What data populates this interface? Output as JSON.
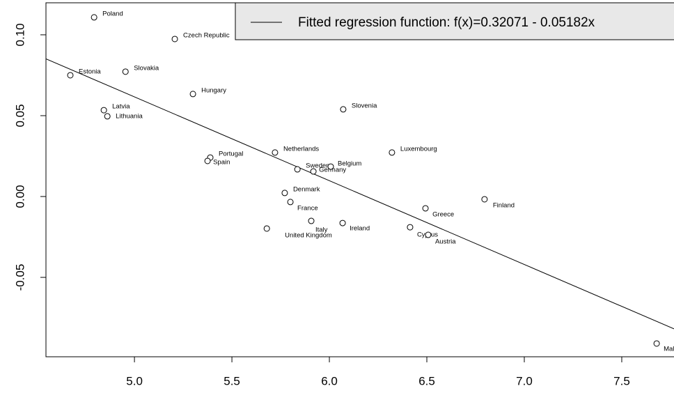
{
  "chart_data": {
    "type": "scatter",
    "x": [
      4.793,
      5.207,
      4.671,
      4.954,
      5.3,
      4.843,
      4.861,
      6.071,
      6.321,
      5.721,
      5.389,
      5.375,
      5.836,
      5.918,
      6.007,
      5.771,
      5.8,
      6.796,
      6.493,
      5.907,
      6.068,
      5.679,
      6.414,
      6.507,
      7.679
    ],
    "values": [
      0.1108,
      0.0974,
      0.075,
      0.0772,
      0.0634,
      0.0534,
      0.0496,
      0.0539,
      0.0272,
      0.0272,
      0.0241,
      0.022,
      0.0168,
      0.0155,
      0.0185,
      0.0022,
      -0.0034,
      -0.0017,
      -0.0073,
      -0.0151,
      -0.0164,
      -0.0198,
      -0.019,
      -0.0237,
      -0.0909
    ],
    "point_labels": [
      "Poland",
      "Czech Republic",
      "Estonia",
      "Slovakia",
      "Hungary",
      "Latvia",
      "Lithuania",
      "Slovenia",
      "Luxembourg",
      "Netherlands",
      "Portugal",
      "Spain",
      "Sweden",
      "Germany",
      "Belgium",
      "Denmark",
      "France",
      "Finland",
      "Greece",
      "Italy",
      "Ireland",
      "United Kingdom",
      "Cyprus",
      "Austria",
      "Malta"
    ],
    "regression": {
      "intercept": 0.32071,
      "slope": -0.05182,
      "label": "Fitted regression function: f(x)=0.32071 - 0.05182x"
    },
    "color": "#000000",
    "xlim": [
      4.546,
      7.768
    ],
    "ylim": [
      -0.0991,
      0.1198
    ],
    "xticks": [
      {
        "value": 5,
        "label": "5.0"
      },
      5.5,
      {
        "value": 6,
        "label": "6.0"
      },
      6.5,
      {
        "value": 7,
        "label": "7.0"
      },
      7.5
    ],
    "yticks": [
      {
        "value": 0.1,
        "label": "0.10"
      },
      0.05,
      {
        "value": 0,
        "label": "0.00"
      },
      -0.05
    ]
  }
}
